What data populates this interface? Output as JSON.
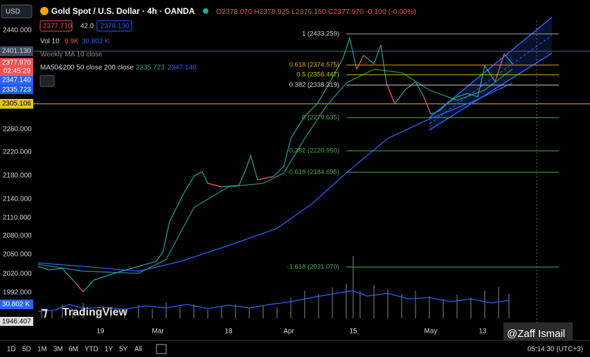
{
  "header": {
    "symbol_button": "USD",
    "title": "Gold Spot / U.S. Dollar · 4h · OANDA",
    "ohlc": "O2378.070 H2378.925 L2376.150 C2377.970 -0.100 (-0.00%)",
    "bid": "2377.710",
    "spread": "42.0",
    "ask": "2378.130",
    "volume": {
      "label": "Vol 10",
      "v1": "9.9K",
      "v2": "30.802 K"
    },
    "weekly_ma": "Weekly MA 10 close",
    "ma": {
      "label": "MA50&200 50 close 200 close",
      "v1": "2335.723",
      "v2": "2347.140"
    }
  },
  "price_axis": [
    "2440.000",
    "2260.000",
    "2220.000",
    "2180.000",
    "2140.000",
    "2110.000",
    "2080.000",
    "2050.000",
    "2020.000",
    "1992.000"
  ],
  "badges": {
    "weekly": "2401.130",
    "last": "2377.970",
    "countdown": "02:45:29",
    "ma200": "2347.140",
    "ma50": "2335.723",
    "level": "2305.106",
    "vol": "30.802 K",
    "low": "1946.407"
  },
  "fib_levels": [
    "1 (2433.259)",
    "0.618 (2374.575)",
    "0.5 (2356.447)",
    "0.382 (2338.319)",
    "0 (2279.635)",
    "-0.382 (2220.950)",
    "-0.618 (2184.695)",
    "-1.618 (2031.070)"
  ],
  "time_axis": [
    "19",
    "Mar",
    "18",
    "Apr",
    "15",
    "May",
    "13"
  ],
  "toolbar": {
    "ranges": [
      "1D",
      "5D",
      "1M",
      "3M",
      "6M",
      "YTD",
      "1Y",
      "5Y",
      "All"
    ],
    "clock": "05:14:30 (UTC+3)"
  },
  "watermark": {
    "brand": "TradingView",
    "author": "@Zaff Ismail"
  }
}
